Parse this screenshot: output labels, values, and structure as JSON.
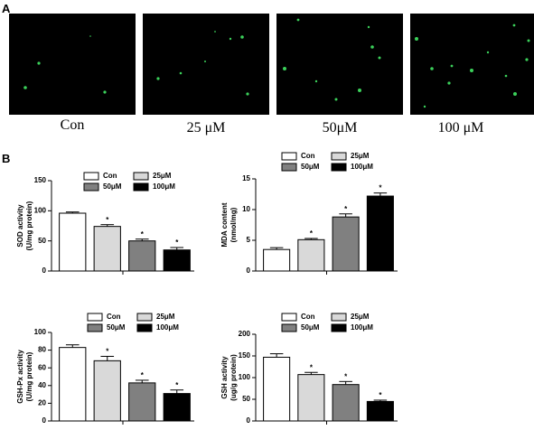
{
  "panels": {
    "a": "A",
    "b": "B"
  },
  "images": [
    "Con",
    "25 μM",
    "50μM",
    "100 μM"
  ],
  "chart_data": [
    {
      "type": "bar",
      "ylabel": [
        "SOD activity",
        "(U/mg protein)"
      ],
      "ylim": [
        0,
        150
      ],
      "yticks": [
        0,
        50,
        100,
        150
      ],
      "series": [
        {
          "name": "Con",
          "color": "#ffffff",
          "values": [
            96
          ],
          "errors": [
            2
          ]
        },
        {
          "name": "25μM",
          "color": "#d9d9d9",
          "values": [
            74
          ],
          "errors": [
            3
          ],
          "star": "*"
        },
        {
          "name": "50μM",
          "color": "#808080",
          "values": [
            50
          ],
          "errors": [
            3
          ],
          "star": "*"
        },
        {
          "name": "100μM",
          "color": "#000000",
          "values": [
            35
          ],
          "errors": [
            4
          ],
          "star": "*"
        }
      ]
    },
    {
      "type": "bar",
      "ylabel": [
        "MDA content",
        "(nmol/mg)"
      ],
      "ylim": [
        0,
        15
      ],
      "yticks": [
        0,
        5,
        10,
        15
      ],
      "series": [
        {
          "name": "Con",
          "color": "#ffffff",
          "values": [
            3.5
          ],
          "errors": [
            0.3
          ]
        },
        {
          "name": "25μM",
          "color": "#d9d9d9",
          "values": [
            5.1
          ],
          "errors": [
            0.2
          ],
          "star": "*"
        },
        {
          "name": "50μM",
          "color": "#808080",
          "values": [
            8.8
          ],
          "errors": [
            0.5
          ],
          "star": "*"
        },
        {
          "name": "100μM",
          "color": "#000000",
          "values": [
            12.2
          ],
          "errors": [
            0.5
          ],
          "star": "*"
        }
      ]
    },
    {
      "type": "bar",
      "ylabel": [
        "GSH-Px activity",
        "(U/mg protein)"
      ],
      "ylim": [
        0,
        100
      ],
      "yticks": [
        0,
        20,
        40,
        60,
        80,
        100
      ],
      "series": [
        {
          "name": "Con",
          "color": "#ffffff",
          "values": [
            83
          ],
          "errors": [
            3
          ]
        },
        {
          "name": "25μM",
          "color": "#d9d9d9",
          "values": [
            68
          ],
          "errors": [
            5
          ],
          "star": "*"
        },
        {
          "name": "50μM",
          "color": "#808080",
          "values": [
            43
          ],
          "errors": [
            3
          ],
          "star": "*"
        },
        {
          "name": "100μM",
          "color": "#000000",
          "values": [
            31
          ],
          "errors": [
            4
          ],
          "star": "*"
        }
      ]
    },
    {
      "type": "bar",
      "ylabel": [
        "GSH activity",
        "(ug/g protein)"
      ],
      "ylim": [
        0,
        200
      ],
      "yticks": [
        0,
        50,
        100,
        150,
        200
      ],
      "series": [
        {
          "name": "Con",
          "color": "#ffffff",
          "values": [
            147
          ],
          "errors": [
            8
          ]
        },
        {
          "name": "25μM",
          "color": "#d9d9d9",
          "values": [
            107
          ],
          "errors": [
            5
          ],
          "star": "*"
        },
        {
          "name": "50μM",
          "color": "#808080",
          "values": [
            84
          ],
          "errors": [
            7
          ],
          "star": "*"
        },
        {
          "name": "100μM",
          "color": "#000000",
          "values": [
            45
          ],
          "errors": [
            3
          ],
          "star": "*"
        }
      ]
    }
  ]
}
